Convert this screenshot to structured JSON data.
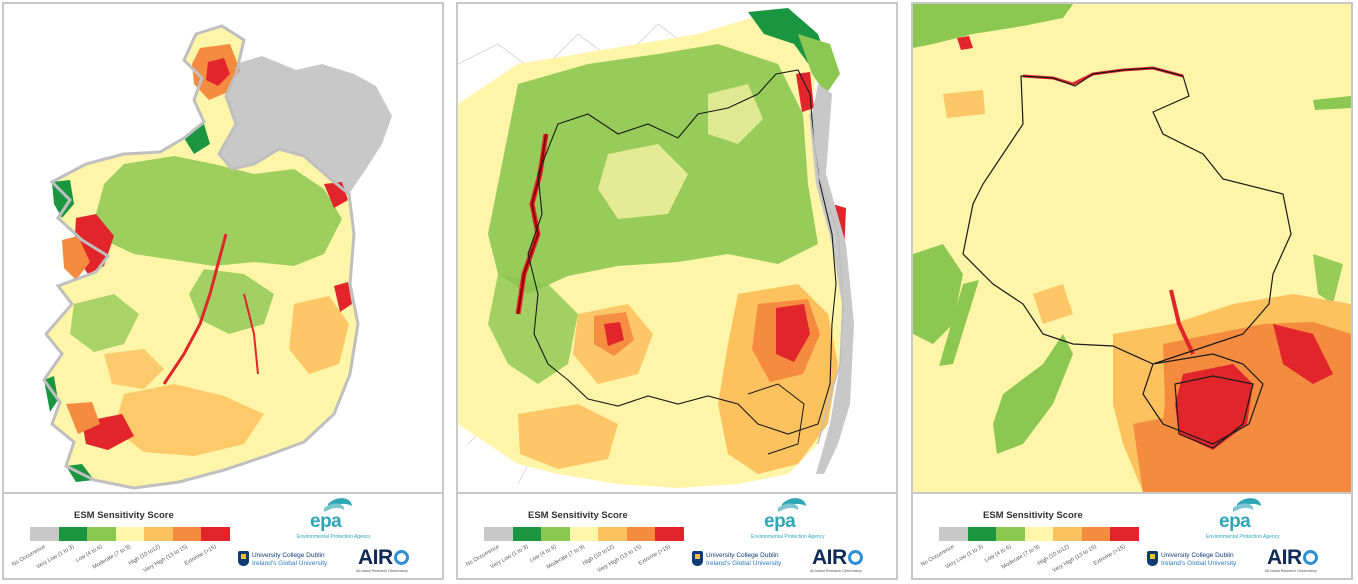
{
  "legend": {
    "title": "ESM Sensitivity Score",
    "categories": [
      {
        "label": "No Occurrence",
        "color": "#c8c8c8"
      },
      {
        "label": "Very Low (1 to 3)",
        "color": "#1a9641"
      },
      {
        "label": "Low (4 to 6)",
        "color": "#8cc751"
      },
      {
        "label": "Moderate (7 to 9)",
        "color": "#fef5a8"
      },
      {
        "label": "High (10 to12)",
        "color": "#fdc15e"
      },
      {
        "label": "Very High (13 to 15)",
        "color": "#f58b3e"
      },
      {
        "label": "Extreme (>15)",
        "color": "#e2252b"
      }
    ]
  },
  "logos": {
    "epa_word": "epa",
    "epa_subtitle": "Environmental Protection Agency",
    "ucd_name": "University College Dublin",
    "ucd_tagline": "Ireland's Global University",
    "airo_word": "AIR",
    "airo_subtitle": "All-Island Research Observatory"
  },
  "colors": {
    "no_occurrence": "#c8c8c8",
    "very_low": "#1a9641",
    "low": "#8cc751",
    "moderate": "#fef5a8",
    "high": "#fdc15e",
    "very_high": "#f58b3e",
    "extreme": "#e2252b",
    "boundary": "#1a1a1a",
    "panel_border": "#c8c8c8"
  },
  "panels": [
    {
      "name": "national-overview-map"
    },
    {
      "name": "regional-county-map"
    },
    {
      "name": "local-detail-map"
    }
  ]
}
